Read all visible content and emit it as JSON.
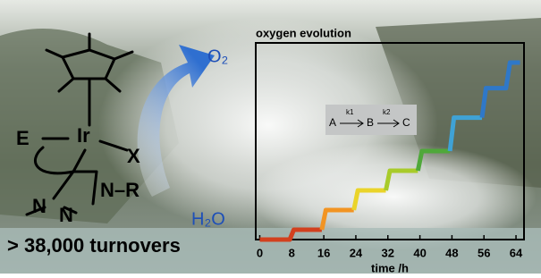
{
  "chart_data": {
    "type": "line",
    "title": "oxygen evolution",
    "xlabel": "time /h",
    "xlim": [
      -1,
      66
    ],
    "xticks": [
      0,
      8,
      16,
      24,
      32,
      40,
      48,
      56,
      64
    ],
    "ylim": [
      0,
      10
    ],
    "series": [
      {
        "color": "#d2401e",
        "x": [
          0,
          7.5,
          8.5,
          15.5
        ],
        "values": [
          0,
          0,
          0.5,
          0.5
        ]
      },
      {
        "color": "#f29422",
        "x": [
          15.5,
          16.5,
          23.5
        ],
        "values": [
          0.5,
          1.5,
          1.5
        ]
      },
      {
        "color": "#ead42a",
        "x": [
          23.5,
          24.5,
          31.5
        ],
        "values": [
          1.5,
          2.5,
          2.5
        ]
      },
      {
        "color": "#a8cb2a",
        "x": [
          31.5,
          32.5,
          39.5
        ],
        "values": [
          2.5,
          3.5,
          3.5
        ]
      },
      {
        "color": "#4fa83a",
        "x": [
          39.5,
          40.5,
          47.5
        ],
        "values": [
          3.5,
          4.5,
          4.5
        ]
      },
      {
        "color": "#3fa2d6",
        "x": [
          47.5,
          48.5,
          55.5
        ],
        "values": [
          4.5,
          6.2,
          6.2
        ]
      },
      {
        "color": "#2f78c8",
        "x": [
          55.5,
          56.5,
          61.5,
          62.5,
          65
        ],
        "values": [
          6.2,
          7.7,
          7.7,
          9,
          9
        ]
      }
    ],
    "scheme": {
      "a": "A",
      "b": "B",
      "c": "C",
      "k1": "k1",
      "k2": "k2"
    }
  },
  "structure": {
    "metal": "Ir",
    "e": "E",
    "x": "X",
    "nr": "N–R",
    "n1": "N",
    "n2": "N",
    "o2": "O₂",
    "h2o": "H₂O",
    "turnovers": "> 38,000 turnovers"
  }
}
